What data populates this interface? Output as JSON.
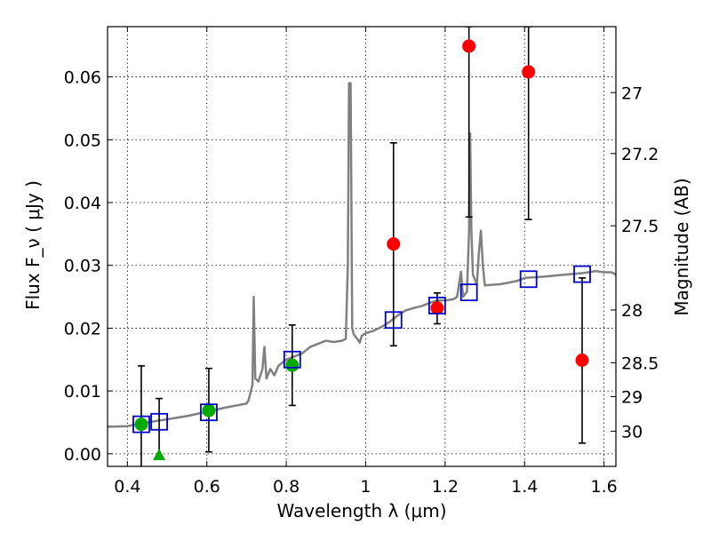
{
  "chart_data": {
    "type": "scatter",
    "xlabel": "Wavelength  λ (μm)",
    "ylabel": "Flux  F_ν  ( μJy )",
    "ylabel_right": "Magnitude (AB)",
    "xlim": [
      0.35,
      1.63
    ],
    "ylim": [
      -0.002,
      0.068
    ],
    "grid": true,
    "x_ticks": [
      0.4,
      0.6,
      0.8,
      1.0,
      1.2,
      1.4,
      1.6
    ],
    "x_tick_labels": [
      "0.4",
      "0.6",
      "0.8",
      "1",
      "1.2",
      "1.4",
      "1.6"
    ],
    "y_ticks": [
      0.0,
      0.01,
      0.02,
      0.03,
      0.04,
      0.05,
      0.06
    ],
    "y_tick_labels": [
      "0.00",
      "0.01",
      "0.02",
      "0.03",
      "0.04",
      "0.05",
      "0.06"
    ],
    "right_ticks": [
      {
        "label": "27",
        "flux": 0.0575
      },
      {
        "label": "27.2",
        "flux": 0.0478
      },
      {
        "label": "27.5",
        "flux": 0.0363
      },
      {
        "label": "28",
        "flux": 0.0229
      },
      {
        "label": "28.5",
        "flux": 0.0145
      },
      {
        "label": "29",
        "flux": 0.0091
      },
      {
        "label": "30",
        "flux": 0.0036
      }
    ],
    "colors": {
      "spectrum": "#808080",
      "green": "#00aa00",
      "red": "#ff0000",
      "model": "#0000cc",
      "errorbar": "#000000"
    },
    "series": [
      {
        "name": "model spectrum",
        "marker": "line",
        "points": [
          [
            0.35,
            0.0043
          ],
          [
            0.4,
            0.0044
          ],
          [
            0.45,
            0.005
          ],
          [
            0.5,
            0.0055
          ],
          [
            0.55,
            0.006
          ],
          [
            0.6,
            0.0067
          ],
          [
            0.65,
            0.0074
          ],
          [
            0.7,
            0.008
          ],
          [
            0.705,
            0.0085
          ],
          [
            0.715,
            0.011
          ],
          [
            0.718,
            0.025
          ],
          [
            0.722,
            0.012
          ],
          [
            0.73,
            0.0115
          ],
          [
            0.74,
            0.0135
          ],
          [
            0.745,
            0.017
          ],
          [
            0.75,
            0.012
          ],
          [
            0.76,
            0.0135
          ],
          [
            0.77,
            0.0125
          ],
          [
            0.78,
            0.014
          ],
          [
            0.8,
            0.015
          ],
          [
            0.82,
            0.0155
          ],
          [
            0.84,
            0.016
          ],
          [
            0.86,
            0.017
          ],
          [
            0.88,
            0.0175
          ],
          [
            0.9,
            0.018
          ],
          [
            0.92,
            0.0178
          ],
          [
            0.94,
            0.018
          ],
          [
            0.95,
            0.0183
          ],
          [
            0.955,
            0.03
          ],
          [
            0.958,
            0.059
          ],
          [
            0.962,
            0.059
          ],
          [
            0.966,
            0.02
          ],
          [
            0.97,
            0.019
          ],
          [
            0.98,
            0.0182
          ],
          [
            0.985,
            0.0177
          ],
          [
            0.99,
            0.0188
          ],
          [
            1.0,
            0.0192
          ],
          [
            1.02,
            0.0196
          ],
          [
            1.04,
            0.0202
          ],
          [
            1.06,
            0.021
          ],
          [
            1.08,
            0.022
          ],
          [
            1.1,
            0.0228
          ],
          [
            1.12,
            0.0232
          ],
          [
            1.14,
            0.0235
          ],
          [
            1.16,
            0.024
          ],
          [
            1.18,
            0.0244
          ],
          [
            1.2,
            0.0244
          ],
          [
            1.22,
            0.0246
          ],
          [
            1.23,
            0.025
          ],
          [
            1.24,
            0.029
          ],
          [
            1.245,
            0.025
          ],
          [
            1.255,
            0.0258
          ],
          [
            1.26,
            0.035
          ],
          [
            1.263,
            0.051
          ],
          [
            1.266,
            0.036
          ],
          [
            1.27,
            0.0285
          ],
          [
            1.28,
            0.027
          ],
          [
            1.285,
            0.032
          ],
          [
            1.29,
            0.0355
          ],
          [
            1.295,
            0.03
          ],
          [
            1.3,
            0.0268
          ],
          [
            1.34,
            0.027
          ],
          [
            1.38,
            0.0275
          ],
          [
            1.4,
            0.028
          ],
          [
            1.45,
            0.0282
          ],
          [
            1.5,
            0.0285
          ],
          [
            1.55,
            0.0288
          ],
          [
            1.58,
            0.0291
          ],
          [
            1.6,
            0.0289
          ],
          [
            1.62,
            0.0289
          ],
          [
            1.63,
            0.0285
          ]
        ]
      },
      {
        "name": "green measurements",
        "marker": "circle",
        "points": [
          [
            0.435,
            0.0047
          ],
          [
            0.605,
            0.0069
          ],
          [
            0.815,
            0.0141
          ]
        ],
        "yerr": [
          [
            -0.005,
            0.014
          ],
          [
            0.0003,
            0.0136
          ],
          [
            0.0077,
            0.0205
          ]
        ]
      },
      {
        "name": "green upper limit",
        "marker": "triangle",
        "points": [
          [
            0.48,
            -0.0003
          ]
        ],
        "yerr": [
          [
            -0.0003,
            0.0088
          ]
        ]
      },
      {
        "name": "red measurements",
        "marker": "circle",
        "points": [
          [
            1.07,
            0.0334
          ],
          [
            1.18,
            0.0232
          ],
          [
            1.26,
            0.0649
          ],
          [
            1.41,
            0.0608
          ],
          [
            1.545,
            0.0149
          ]
        ],
        "yerr": [
          [
            0.0172,
            0.0495
          ],
          [
            0.0207,
            0.0256
          ],
          [
            0.0377,
            0.068
          ],
          [
            0.0373,
            0.068
          ],
          [
            0.0017,
            0.028
          ]
        ]
      },
      {
        "name": "model photometry",
        "marker": "square",
        "points": [
          [
            0.435,
            0.0047
          ],
          [
            0.48,
            0.0051
          ],
          [
            0.605,
            0.0066
          ],
          [
            0.815,
            0.015
          ],
          [
            1.07,
            0.0213
          ],
          [
            1.18,
            0.0236
          ],
          [
            1.26,
            0.0257
          ],
          [
            1.41,
            0.0278
          ],
          [
            1.545,
            0.0286
          ]
        ]
      }
    ]
  }
}
